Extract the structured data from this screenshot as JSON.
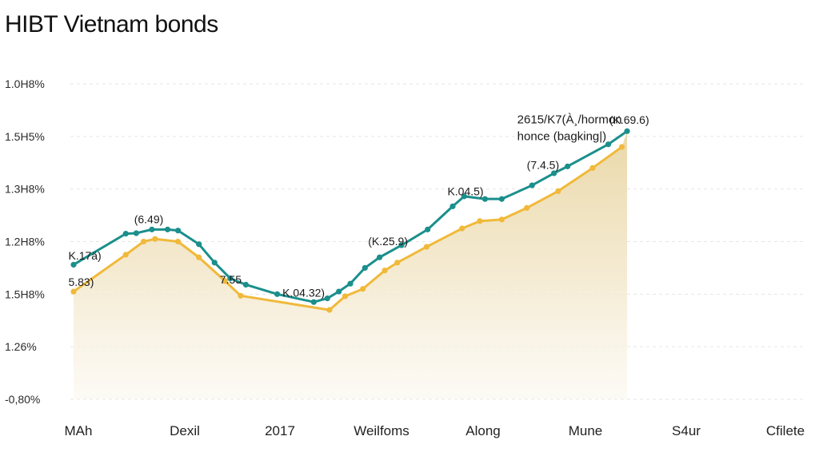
{
  "chart_data": {
    "type": "line",
    "title": "HIBT Vietnam bonds",
    "x_tick_labels": [
      "MAh",
      "Dexil",
      "2017",
      "Weilfoms",
      "Along",
      "Mune",
      "S4ur",
      "Cfilete"
    ],
    "y_tick_labels": [
      "1.0H8%",
      "1.5H5%",
      "1.3H8%",
      "1.2H8%",
      "1.5H8%",
      "1.26%",
      "-0,80%"
    ],
    "x_range": [
      0,
      7
    ],
    "y_range": [
      0,
      6
    ],
    "grid": true,
    "series": [
      {
        "color": "#1b8f8c",
        "points": [
          [
            0,
            2.56
          ],
          [
            0.5,
            3.15
          ],
          [
            0.6,
            3.16
          ],
          [
            0.75,
            3.23
          ],
          [
            0.9,
            3.23
          ],
          [
            1.0,
            3.21
          ],
          [
            1.2,
            2.95
          ],
          [
            1.35,
            2.6
          ],
          [
            1.5,
            2.3
          ],
          [
            1.65,
            2.18
          ],
          [
            1.95,
            2.0
          ],
          [
            2.3,
            1.85
          ],
          [
            2.43,
            1.92
          ],
          [
            2.54,
            2.05
          ],
          [
            2.65,
            2.2
          ],
          [
            2.79,
            2.5
          ],
          [
            2.93,
            2.7
          ],
          [
            3.14,
            2.93
          ],
          [
            3.39,
            3.23
          ],
          [
            3.63,
            3.67
          ],
          [
            3.74,
            3.86
          ],
          [
            3.94,
            3.81
          ],
          [
            4.1,
            3.81
          ],
          [
            4.39,
            4.07
          ],
          [
            4.6,
            4.3
          ],
          [
            4.73,
            4.43
          ],
          [
            5.12,
            4.85
          ],
          [
            5.3,
            5.1
          ]
        ]
      },
      {
        "color": "#f0b93a",
        "points": [
          [
            0,
            2.05
          ],
          [
            0.5,
            2.75
          ],
          [
            0.67,
            3.0
          ],
          [
            0.78,
            3.05
          ],
          [
            1.0,
            3.0
          ],
          [
            1.2,
            2.7
          ],
          [
            1.45,
            2.25
          ],
          [
            1.6,
            1.97
          ],
          [
            2.45,
            1.7
          ],
          [
            2.6,
            1.96
          ],
          [
            2.77,
            2.1
          ],
          [
            2.98,
            2.45
          ],
          [
            3.1,
            2.6
          ],
          [
            3.38,
            2.9
          ],
          [
            3.72,
            3.25
          ],
          [
            3.89,
            3.39
          ],
          [
            4.1,
            3.42
          ],
          [
            4.34,
            3.64
          ],
          [
            4.64,
            3.96
          ],
          [
            4.97,
            4.4
          ],
          [
            5.25,
            4.8
          ]
        ]
      }
    ],
    "data_labels": [
      {
        "text": "K.17ä)",
        "x": -0.05,
        "y": 2.66
      },
      {
        "text": "5.83)",
        "x": -0.05,
        "y": 2.16
      },
      {
        "text": "(6.49)",
        "x": 0.58,
        "y": 3.35
      },
      {
        "text": "7.55",
        "x": 1.4,
        "y": 2.2
      },
      {
        "text": "K.04.32)",
        "x": 2.0,
        "y": 1.95
      },
      {
        "text": "(K.25.9)",
        "x": 2.82,
        "y": 2.93
      },
      {
        "text": "K.04.5)",
        "x": 3.58,
        "y": 3.88
      },
      {
        "text": "(7.4.5)",
        "x": 4.34,
        "y": 4.38
      },
      {
        "text": "(K.69.6)",
        "x": 5.13,
        "y": 5.24
      }
    ],
    "annotation": {
      "lines": [
        "2615/K7(À¸/hormon",
        "honce (bagking|)"
      ],
      "x": 4.34,
      "y": 5.25
    }
  }
}
